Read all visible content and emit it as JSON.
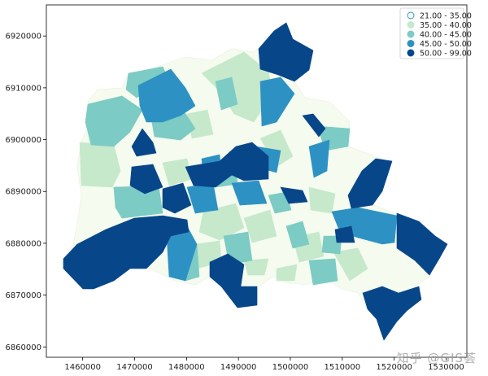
{
  "chart_data": {
    "type": "choropleth",
    "xlim": [
      1453000,
      1534000
    ],
    "ylim": [
      6858000,
      6926000
    ],
    "x_ticks": [
      1460000,
      1470000,
      1480000,
      1490000,
      1500000,
      1510000,
      1520000,
      1530000
    ],
    "y_ticks": [
      6860000,
      6870000,
      6880000,
      6890000,
      6900000,
      6910000,
      6920000
    ],
    "x_tick_labels": [
      "1460000",
      "1470000",
      "1480000",
      "1490000",
      "1500000",
      "1510000",
      "1520000",
      "1530000"
    ],
    "y_tick_labels": [
      "6860000",
      "6870000",
      "6880000",
      "6890000",
      "6900000",
      "6910000",
      "6920000"
    ],
    "legend_position": "upper-right",
    "legend": [
      {
        "label": "21.00 - 35.00",
        "color": "#f5fbee"
      },
      {
        "label": "35.00 - 40.00",
        "color": "#c6e8cb"
      },
      {
        "label": "40.00 - 45.00",
        "color": "#7ccbc4"
      },
      {
        "label": "45.00 - 50.00",
        "color": "#2d92c3"
      },
      {
        "label": "50.00 - 99.00",
        "color": "#08468a"
      }
    ]
  },
  "watermark": "知乎 @GIS荟"
}
